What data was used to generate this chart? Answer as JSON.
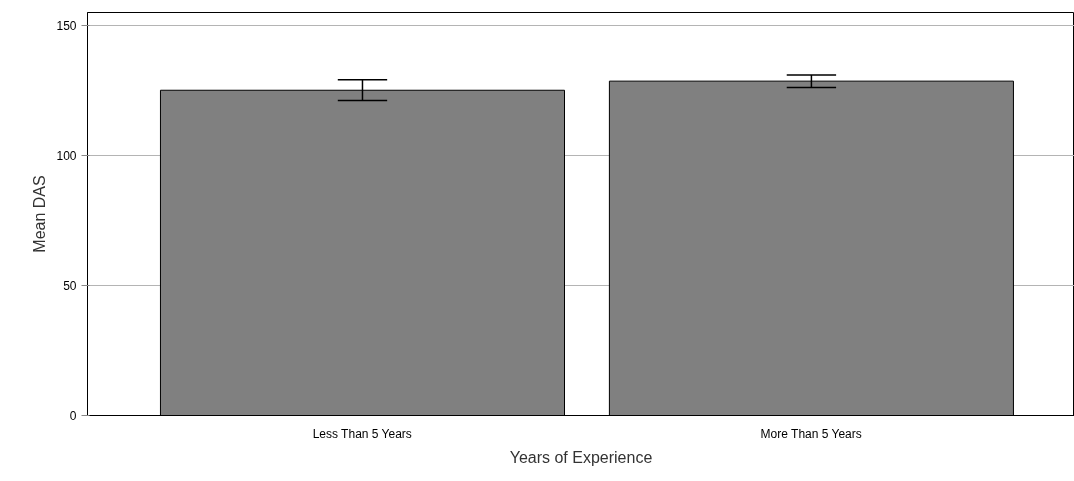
{
  "chart_data": {
    "type": "bar",
    "xlabel": "Years of Experience",
    "ylabel": "Mean DAS",
    "categories": [
      "Less Than 5 Years",
      "More Than 5 Years"
    ],
    "values": [
      125.1,
      128.6
    ],
    "errors": [
      [
        121.2,
        129.1
      ],
      [
        126.2,
        131.0
      ]
    ],
    "color": "#808080",
    "ylim": [
      0,
      155
    ],
    "yticks": [
      0,
      50,
      100,
      150
    ],
    "grid": "y"
  }
}
